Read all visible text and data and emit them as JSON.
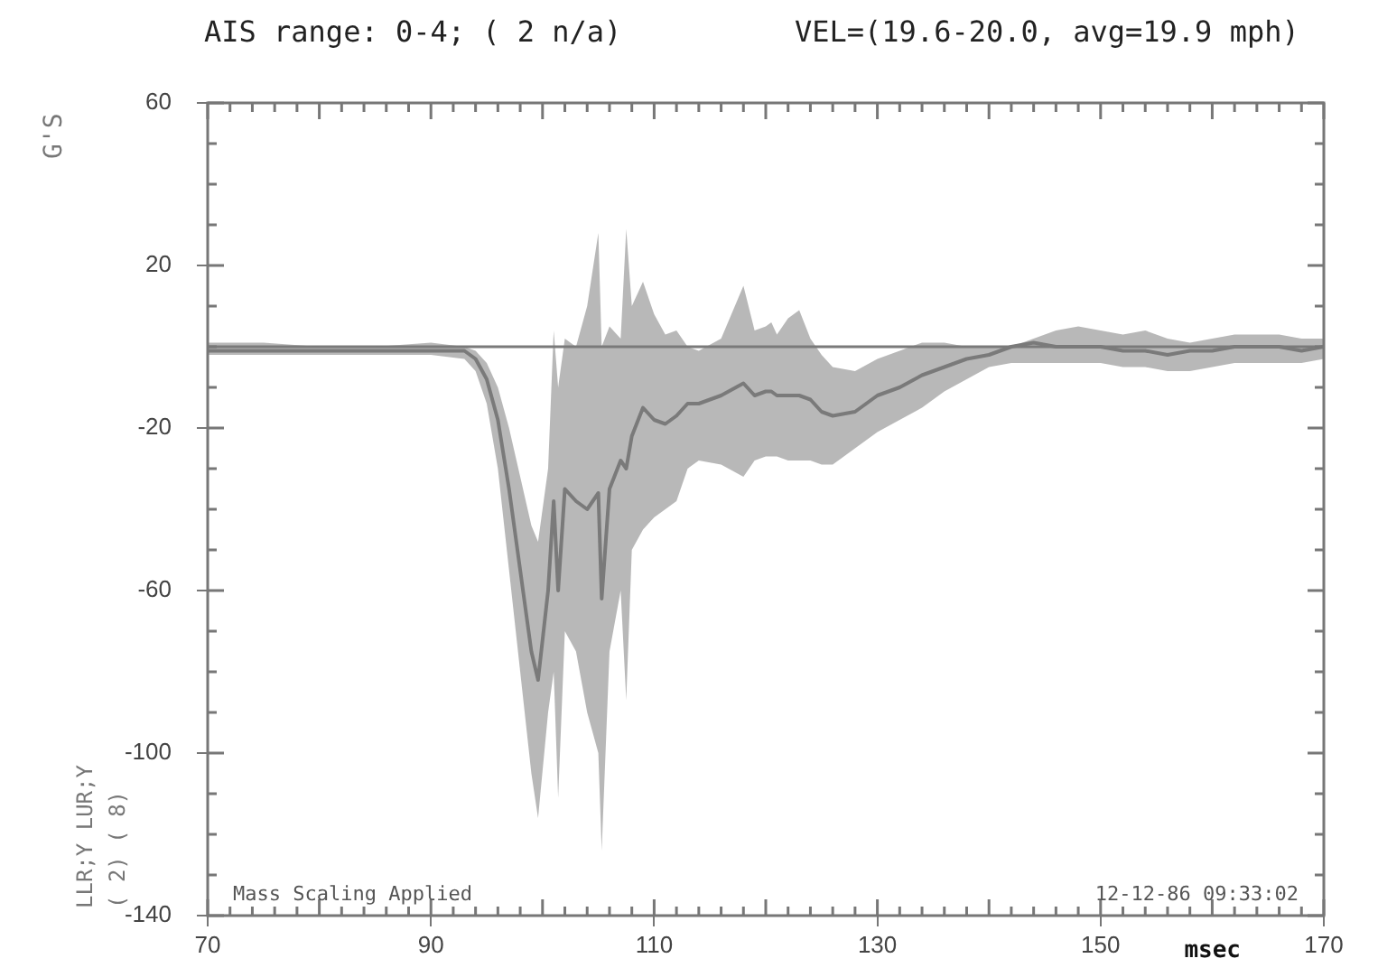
{
  "chart_data": {
    "type": "line",
    "title": "AIS range: 0-4; ( 2 n/a)",
    "subtitle": "VEL=(19.6-20.0, avg=19.9 mph)",
    "xlabel": "msec",
    "ylabel": "G'S",
    "annotations": [
      "Mass Scaling Applied",
      "12-12-86 09:33:02",
      "LLR;Y LUR;Y",
      "( 2)  ( 8)"
    ],
    "x": [
      70,
      75,
      80,
      85,
      90,
      93,
      94,
      95,
      96,
      97,
      98,
      99,
      99.6,
      100.5,
      101,
      101.4,
      102,
      103,
      104,
      105,
      105.3,
      106,
      107,
      107.5,
      108,
      109,
      110,
      111,
      112,
      113,
      114,
      116,
      118,
      119,
      120,
      120.5,
      121,
      122,
      123,
      124,
      125,
      126,
      128,
      130,
      132,
      134,
      136,
      138,
      140,
      142,
      144,
      146,
      148,
      150,
      152,
      154,
      156,
      158,
      160,
      162,
      164,
      166,
      168,
      170
    ],
    "series": [
      {
        "color": "#7a7a7a",
        "values": [
          -1,
          -1,
          -1,
          -1,
          -1,
          -1,
          -3,
          -8,
          -18,
          -35,
          -55,
          -75,
          -82,
          -60,
          -38,
          -60,
          -35,
          -38,
          -40,
          -36,
          -62,
          -35,
          -28,
          -30,
          -22,
          -15,
          -18,
          -19,
          -17,
          -14,
          -14,
          -12,
          -9,
          -12,
          -11,
          -11,
          -12,
          -12,
          -12,
          -13,
          -16,
          -17,
          -16,
          -12,
          -10,
          -7,
          -5,
          -3,
          -2,
          0,
          1,
          0,
          0,
          0,
          -1,
          -1,
          -2,
          -1,
          -1,
          0,
          0,
          0,
          -1,
          0
        ],
        "lower": [
          -2,
          -2,
          -2,
          -2,
          -2,
          -3,
          -6,
          -14,
          -30,
          -55,
          -80,
          -105,
          -116,
          -90,
          -80,
          -111,
          -70,
          -75,
          -90,
          -100,
          -124,
          -75,
          -60,
          -87,
          -50,
          -45,
          -42,
          -40,
          -38,
          -30,
          -28,
          -29,
          -32,
          -28,
          -27,
          -27,
          -27,
          -28,
          -28,
          -28,
          -29,
          -29,
          -25,
          -21,
          -18,
          -15,
          -11,
          -8,
          -5,
          -4,
          -4,
          -4,
          -4,
          -4,
          -5,
          -5,
          -6,
          -6,
          -5,
          -4,
          -4,
          -4,
          -4,
          -3
        ],
        "upper": [
          1,
          1,
          0,
          0,
          1,
          0,
          -1,
          -4,
          -10,
          -20,
          -32,
          -44,
          -48,
          -30,
          4,
          -10,
          2,
          0,
          10,
          28,
          0,
          5,
          2,
          29,
          10,
          16,
          8,
          3,
          4,
          0,
          -1,
          2,
          15,
          4,
          5,
          6,
          3,
          7,
          9,
          2,
          -2,
          -5,
          -6,
          -3,
          -1,
          1,
          1,
          0,
          0,
          0,
          2,
          4,
          5,
          4,
          3,
          4,
          2,
          1,
          2,
          3,
          3,
          3,
          2,
          2
        ]
      }
    ],
    "xlim": [
      70,
      170
    ],
    "xticks": [
      70,
      90,
      110,
      130,
      150,
      170
    ],
    "ylim": [
      -140,
      60
    ],
    "yticks": [
      60,
      20,
      -20,
      -60,
      -100,
      -140
    ],
    "ref_lines": [
      {
        "axis": "y",
        "value": 0,
        "color": "#7a7a7a"
      }
    ],
    "marker": "none",
    "line_style": "solid",
    "legend": false,
    "grid": false
  }
}
